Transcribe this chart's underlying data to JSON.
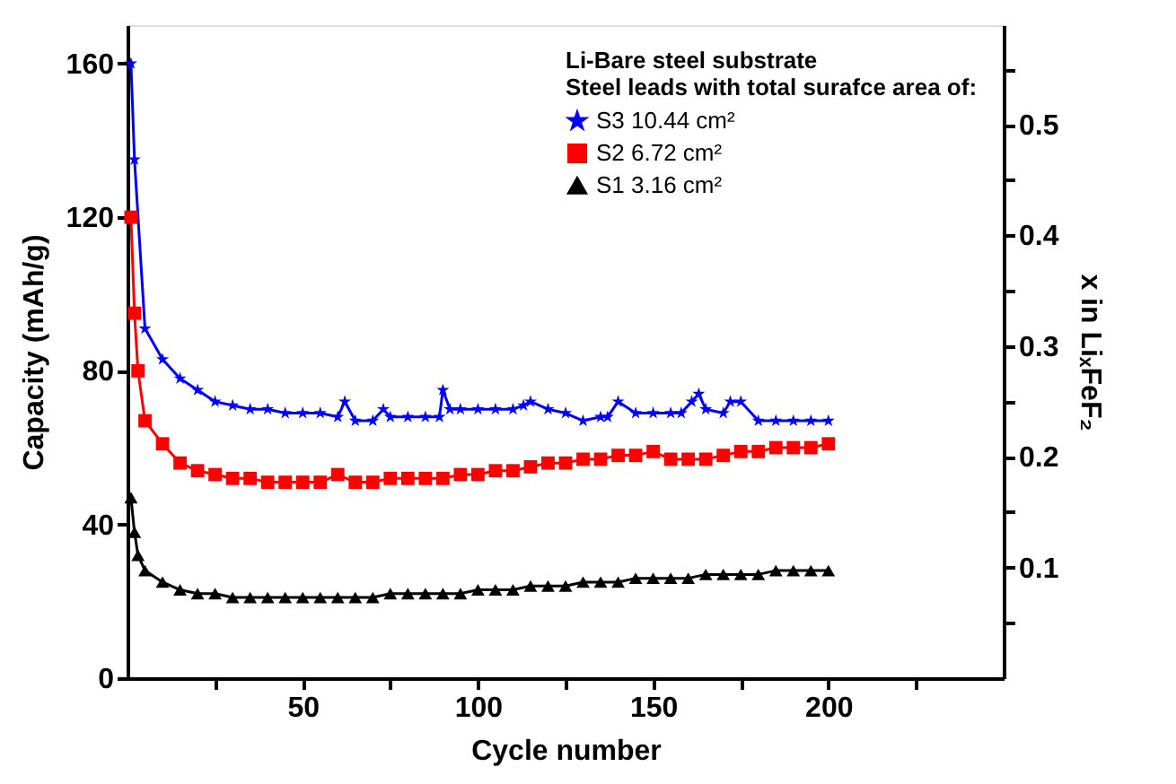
{
  "chart_data": {
    "type": "line",
    "xlabel": "Cycle number",
    "ylabel": "Capacity (mAh/g)",
    "y2label": "x in LiₓFeF₂",
    "legend_title": "Li-Bare steel substrate\nSteel leads with total surafce area of:",
    "legend": "top right",
    "grid": false,
    "xlim": [
      0,
      250
    ],
    "xticks": [
      {
        "value": 25,
        "label": null
      },
      50,
      {
        "value": 75,
        "label": null
      },
      100,
      {
        "value": 125,
        "label": null
      },
      150,
      {
        "value": 175,
        "label": null
      },
      200,
      {
        "value": 225,
        "label": null
      }
    ],
    "ylim": [
      0,
      170
    ],
    "yticks": [
      0,
      40,
      80,
      120,
      160
    ],
    "y2lim": [
      0,
      0.59
    ],
    "y2ticks": [
      {
        "value": 0.05,
        "label": null
      },
      0.1,
      {
        "value": 0.15,
        "label": null
      },
      0.2,
      {
        "value": 0.25,
        "label": null
      },
      0.3,
      {
        "value": 0.35,
        "label": null
      },
      0.4,
      {
        "value": 0.45,
        "label": null
      },
      0.5,
      {
        "value": 0.55,
        "label": null
      }
    ],
    "series": [
      {
        "name": "S3 10.44 cm²",
        "color": "#0000ff",
        "marker": "star",
        "x": [
          1,
          2,
          5,
          10,
          15,
          20,
          25,
          30,
          35,
          40,
          45,
          50,
          55,
          60,
          62,
          65,
          70,
          73,
          75,
          80,
          85,
          89,
          90,
          92,
          95,
          100,
          105,
          110,
          113,
          115,
          120,
          125,
          130,
          135,
          137,
          140,
          145,
          150,
          155,
          158,
          161,
          163,
          165,
          170,
          172,
          175,
          180,
          185,
          190,
          195,
          200
        ],
        "values": [
          160,
          135,
          91,
          83,
          78,
          75,
          72,
          71,
          70,
          70,
          69,
          69,
          69,
          68,
          72,
          67,
          67,
          70,
          68,
          68,
          68,
          68,
          75,
          70,
          70,
          70,
          70,
          70,
          71,
          72,
          70,
          69,
          67,
          68,
          68,
          72,
          69,
          69,
          69,
          69,
          72,
          74,
          70,
          69,
          72,
          72,
          67,
          67,
          67,
          67,
          67
        ]
      },
      {
        "name": "S2 6.72 cm²",
        "color": "#ff0000",
        "marker": "square",
        "x": [
          1,
          2,
          3,
          5,
          10,
          15,
          20,
          25,
          30,
          35,
          40,
          45,
          50,
          55,
          60,
          65,
          70,
          75,
          80,
          85,
          90,
          95,
          100,
          105,
          110,
          115,
          120,
          125,
          130,
          135,
          140,
          145,
          150,
          155,
          160,
          165,
          170,
          175,
          180,
          185,
          190,
          195,
          200
        ],
        "values": [
          120,
          95,
          80,
          67,
          61,
          56,
          54,
          53,
          52,
          52,
          51,
          51,
          51,
          51,
          53,
          51,
          51,
          52,
          52,
          52,
          52,
          53,
          53,
          54,
          54,
          55,
          56,
          56,
          57,
          57,
          58,
          58,
          59,
          57,
          57,
          57,
          58,
          59,
          59,
          60,
          60,
          60,
          61
        ]
      },
      {
        "name": "S1 3.16 cm²",
        "color": "#000000",
        "marker": "triangle",
        "x": [
          1,
          2,
          3,
          5,
          10,
          15,
          20,
          25,
          30,
          35,
          40,
          45,
          50,
          55,
          60,
          65,
          70,
          75,
          80,
          85,
          90,
          95,
          100,
          105,
          110,
          115,
          120,
          125,
          130,
          135,
          140,
          145,
          150,
          155,
          160,
          165,
          170,
          175,
          180,
          185,
          190,
          195,
          200
        ],
        "values": [
          47,
          38,
          32,
          28,
          25,
          23,
          22,
          22,
          21,
          21,
          21,
          21,
          21,
          21,
          21,
          21,
          21,
          22,
          22,
          22,
          22,
          22,
          23,
          23,
          23,
          24,
          24,
          24,
          25,
          25,
          25,
          26,
          26,
          26,
          26,
          27,
          27,
          27,
          27,
          28,
          28,
          28,
          28
        ]
      }
    ]
  }
}
